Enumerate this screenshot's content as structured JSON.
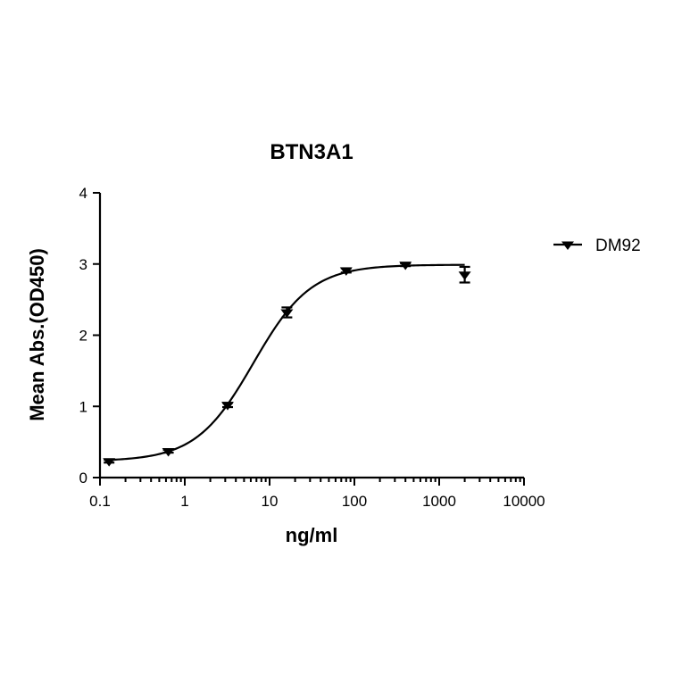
{
  "chart_data": {
    "type": "scatter",
    "title": "BTN3A1",
    "xlabel": "ng/ml",
    "ylabel": "Mean Abs.(OD450)",
    "xscale": "log",
    "xlim": [
      0.1,
      10000
    ],
    "ylim": [
      0,
      4
    ],
    "xticks": [
      0.1,
      1,
      10,
      100,
      1000,
      10000
    ],
    "xtick_labels": [
      "0.1",
      "1",
      "10",
      "100",
      "1000",
      "10000"
    ],
    "yticks": [
      0,
      1,
      2,
      3,
      4
    ],
    "ytick_labels": [
      "0",
      "1",
      "2",
      "3",
      "4"
    ],
    "grid": false,
    "legend_position": "right",
    "series": [
      {
        "name": "DM92",
        "marker": "triangle-down",
        "color": "#000000",
        "fit": "sigmoidal",
        "x": [
          0.128,
          0.64,
          3.2,
          16,
          80,
          400,
          2000
        ],
        "y": [
          0.23,
          0.37,
          1.02,
          2.32,
          2.91,
          2.99,
          2.85
        ],
        "err": [
          0.02,
          0.02,
          0.03,
          0.07,
          0.03,
          0.02,
          0.11
        ]
      }
    ]
  }
}
